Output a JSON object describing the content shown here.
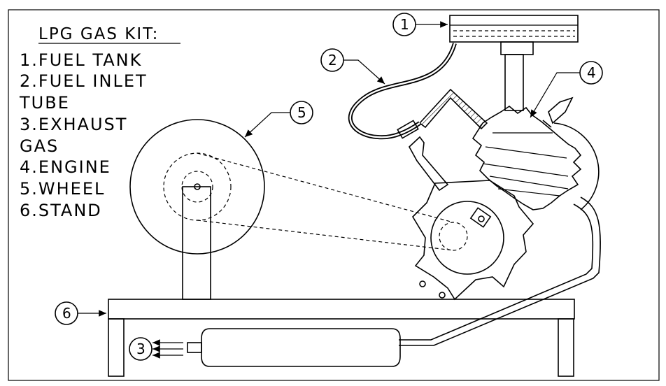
{
  "diagram": {
    "legend": {
      "title": "LPG GAS KIT:",
      "lines": [
        "1.FUEL TANK",
        "2.FUEL INLET",
        "TUBE",
        "3.EXHAUST",
        "GAS",
        "4.ENGINE",
        "5.WHEEL",
        "6.STAND"
      ]
    },
    "callouts": [
      "1",
      "2",
      "3",
      "4",
      "5",
      "6"
    ]
  }
}
